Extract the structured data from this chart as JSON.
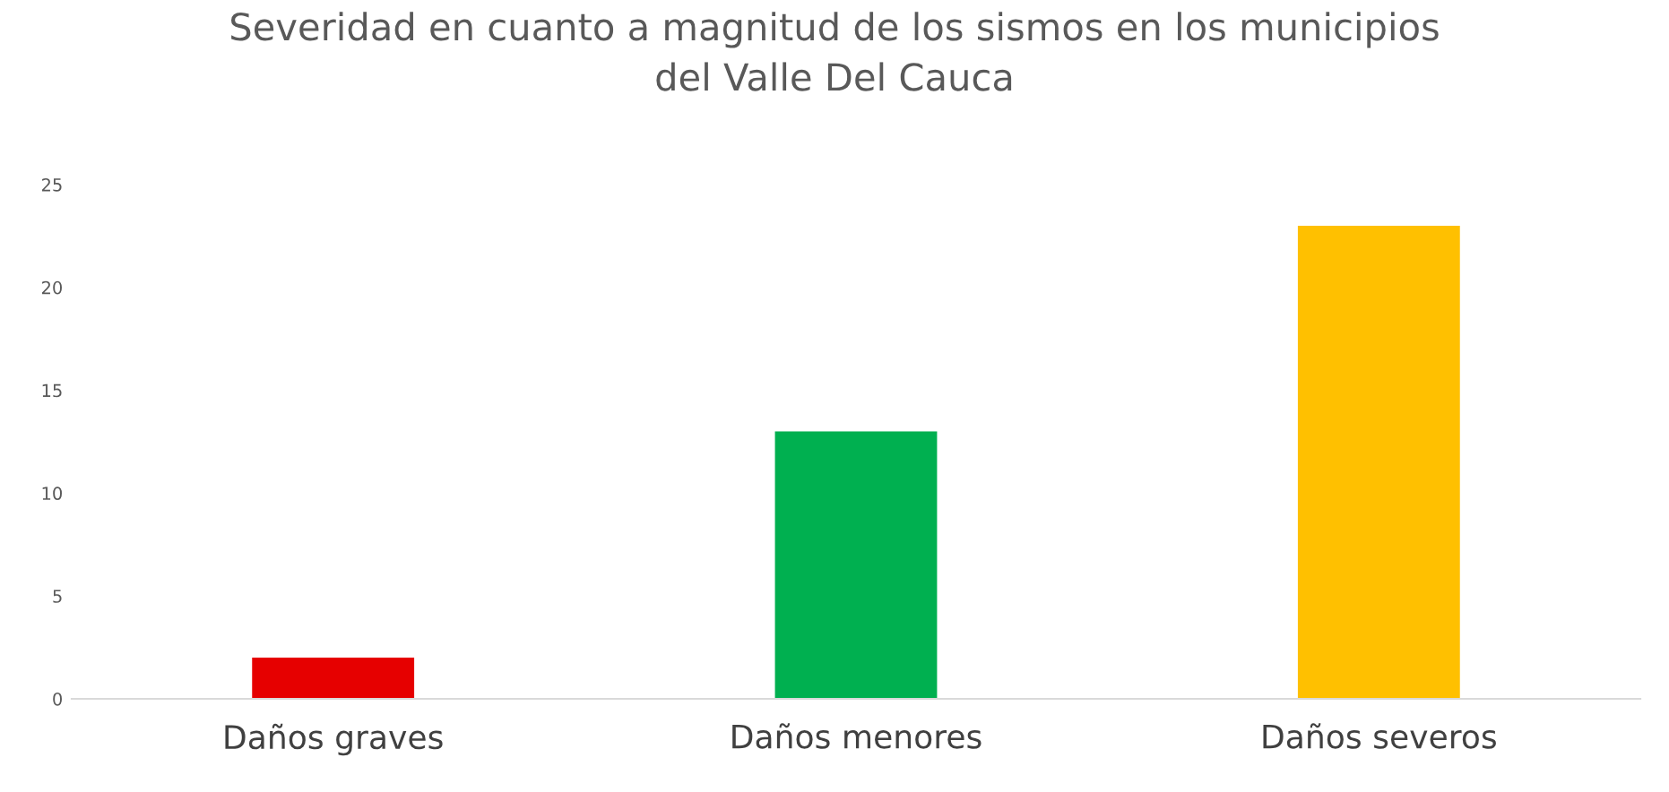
{
  "chart_data": {
    "type": "bar",
    "title": "Severidad en cuanto a magnitud de los sismos en los municipios\ndel Valle Del Cauca",
    "categories": [
      "Daños graves",
      "Daños menores",
      "Daños severos"
    ],
    "values": [
      2,
      13,
      23
    ],
    "colors": [
      "#e60000",
      "#00b050",
      "#ffc000"
    ],
    "ylim": [
      0,
      25
    ],
    "yticks": [
      0,
      5,
      10,
      15,
      20,
      25
    ],
    "grid": false
  }
}
